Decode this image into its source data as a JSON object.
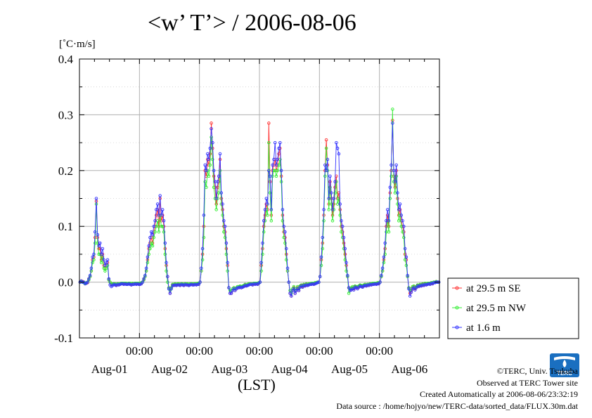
{
  "title": "<w’ T’> / 2006-08-06",
  "credits": {
    "copyright": "©TERC, Univ. Tsukuba",
    "observed": "Observed at TERC Tower site",
    "created": "Created Automatically at 2006-08-06/23:32:19",
    "source": "Data source : /home/hojyo/new/TERC-data/sorted_data/FLUX.30m.dat"
  },
  "logo": {
    "text": "TERC",
    "color": "#1a6fc0"
  },
  "chart_data": {
    "type": "line",
    "title": "<w’ T’> / 2006-08-06",
    "ylabel": "[˚C·m/s]",
    "xlabel": "(LST)",
    "ylim": [
      -0.1,
      0.4
    ],
    "yticks": [
      "0.4",
      "0.3",
      "0.2",
      "0.1",
      "0.0",
      "-0.1"
    ],
    "xlim_days": [
      0,
      6
    ],
    "x_midnight_labels": [
      "00:00",
      "00:00",
      "00:00",
      "00:00",
      "00:00"
    ],
    "x_day_labels": [
      "Aug-01",
      "Aug-02",
      "Aug-03",
      "Aug-04",
      "Aug-05",
      "Aug-06"
    ],
    "grid": true,
    "legend_position": "right",
    "legend": [
      "at 29.5 m SE",
      "at 29.5 m NW",
      "at 1.6 m"
    ],
    "series": [
      {
        "name": "at 29.5 m SE",
        "color": "#ff3333",
        "day_peaks": [
          0.145,
          0.15,
          0.285,
          0.285,
          0.255,
          0.29
        ],
        "values": [
          [
            0.0,
            0.002,
            0.001,
            0.0,
            -0.002,
            -0.002,
            -0.001,
            0.005,
            0.01,
            0.02,
            0.04,
            0.045,
            0.08,
            0.145,
            0.08,
            0.06,
            0.06,
            0.04,
            0.05,
            0.03,
            0.025,
            0.03,
            0.035,
            0.005,
            0.0,
            -0.005,
            -0.004,
            -0.003,
            -0.004,
            -0.005,
            -0.003,
            -0.004,
            -0.003,
            -0.002,
            -0.002,
            -0.003,
            -0.002,
            -0.003,
            -0.003,
            -0.002,
            -0.003,
            -0.004,
            -0.003,
            -0.003,
            -0.002,
            -0.003,
            -0.002,
            -0.003
          ],
          [
            -0.003,
            -0.002,
            0.0,
            0.005,
            0.01,
            0.02,
            0.04,
            0.06,
            0.07,
            0.08,
            0.07,
            0.09,
            0.1,
            0.12,
            0.13,
            0.1,
            0.15,
            0.11,
            0.12,
            0.1,
            0.06,
            0.03,
            0.01,
            -0.01,
            -0.02,
            -0.01,
            -0.005,
            -0.005,
            -0.004,
            -0.005,
            -0.004,
            -0.004,
            -0.005,
            -0.003,
            -0.004,
            -0.005,
            -0.003,
            -0.004,
            -0.004,
            -0.005,
            -0.004,
            -0.003,
            -0.004,
            -0.004,
            -0.003,
            -0.004,
            -0.003,
            -0.003
          ],
          [
            0.0,
            0.02,
            0.05,
            0.1,
            0.2,
            0.19,
            0.22,
            0.21,
            0.23,
            0.285,
            0.24,
            0.19,
            0.17,
            0.14,
            0.17,
            0.18,
            0.22,
            0.15,
            0.13,
            0.1,
            0.09,
            0.06,
            0.03,
            -0.01,
            -0.02,
            -0.02,
            -0.015,
            -0.01,
            -0.015,
            -0.012,
            -0.01,
            -0.01,
            -0.008,
            -0.01,
            -0.008,
            -0.007,
            -0.005,
            -0.006,
            -0.005,
            -0.004,
            -0.003,
            -0.003,
            -0.004,
            -0.002,
            -0.003,
            -0.002,
            -0.003,
            -0.001
          ],
          [
            0.0,
            0.03,
            0.06,
            0.1,
            0.12,
            0.14,
            0.13,
            0.285,
            0.18,
            0.12,
            0.2,
            0.21,
            0.22,
            0.2,
            0.21,
            0.23,
            0.24,
            0.19,
            0.12,
            0.09,
            0.08,
            0.05,
            0.02,
            0.0,
            -0.02,
            -0.025,
            -0.015,
            -0.01,
            -0.02,
            -0.015,
            -0.01,
            -0.015,
            -0.008,
            -0.006,
            -0.008,
            -0.005,
            -0.006,
            -0.004,
            -0.005,
            -0.004,
            -0.003,
            -0.003,
            -0.002,
            -0.003,
            -0.002,
            -0.001,
            0.0,
            0.0
          ],
          [
            0.01,
            0.04,
            0.07,
            0.12,
            0.2,
            0.255,
            0.21,
            0.14,
            0.18,
            0.15,
            0.12,
            0.14,
            0.17,
            0.19,
            0.15,
            0.16,
            0.13,
            0.1,
            0.09,
            0.07,
            0.05,
            0.03,
            0.01,
            -0.01,
            -0.015,
            -0.012,
            -0.01,
            -0.012,
            -0.008,
            -0.009,
            -0.01,
            -0.008,
            -0.006,
            -0.007,
            -0.008,
            -0.006,
            -0.005,
            -0.006,
            -0.004,
            -0.005,
            -0.003,
            -0.004,
            -0.003,
            -0.003,
            -0.002,
            -0.003,
            -0.002,
            -0.002
          ],
          [
            0.0,
            0.01,
            0.02,
            0.04,
            0.06,
            0.1,
            0.12,
            0.1,
            0.16,
            0.2,
            0.29,
            0.19,
            0.17,
            0.2,
            0.15,
            0.12,
            0.13,
            0.11,
            0.1,
            0.09,
            0.05,
            0.04,
            0.01,
            -0.01,
            -0.02,
            -0.015,
            -0.01,
            -0.008,
            -0.012,
            -0.009,
            -0.006,
            -0.007,
            -0.005,
            -0.006,
            -0.004,
            -0.005,
            -0.003,
            -0.004,
            -0.003,
            -0.002,
            -0.003,
            -0.001,
            -0.002,
            0.0,
            0.0,
            0.001,
            0.0,
            0.0
          ]
        ]
      },
      {
        "name": "at 29.5 m NW",
        "color": "#33ee33",
        "day_peaks": [
          0.14,
          0.12,
          0.26,
          0.25,
          0.24,
          0.31
        ],
        "values": [
          [
            0.0,
            0.001,
            0.0,
            -0.001,
            -0.002,
            -0.001,
            0.0,
            0.004,
            0.01,
            0.02,
            0.035,
            0.04,
            0.07,
            0.14,
            0.07,
            0.05,
            0.05,
            0.035,
            0.045,
            0.025,
            0.02,
            0.025,
            0.03,
            0.004,
            0.0,
            -0.004,
            -0.003,
            -0.003,
            -0.003,
            -0.004,
            -0.003,
            -0.003,
            -0.003,
            -0.002,
            -0.002,
            -0.002,
            -0.002,
            -0.002,
            -0.003,
            -0.002,
            -0.002,
            -0.003,
            -0.002,
            -0.003,
            -0.002,
            -0.002,
            -0.002,
            -0.002
          ],
          [
            -0.002,
            -0.001,
            0.0,
            0.004,
            0.01,
            0.02,
            0.035,
            0.05,
            0.06,
            0.07,
            0.065,
            0.08,
            0.09,
            0.1,
            0.11,
            0.09,
            0.12,
            0.1,
            0.1,
            0.09,
            0.05,
            0.02,
            0.0,
            -0.01,
            -0.015,
            -0.01,
            -0.004,
            -0.004,
            -0.003,
            -0.004,
            -0.003,
            -0.003,
            -0.004,
            -0.003,
            -0.003,
            -0.004,
            -0.003,
            -0.003,
            -0.003,
            -0.004,
            -0.003,
            -0.003,
            -0.003,
            -0.003,
            -0.003,
            -0.003,
            -0.002,
            -0.002
          ],
          [
            0.0,
            0.02,
            0.04,
            0.08,
            0.18,
            0.17,
            0.2,
            0.19,
            0.21,
            0.26,
            0.22,
            0.17,
            0.15,
            0.13,
            0.15,
            0.16,
            0.2,
            0.14,
            0.12,
            0.09,
            0.08,
            0.05,
            0.02,
            -0.01,
            -0.015,
            -0.015,
            -0.012,
            -0.01,
            -0.012,
            -0.01,
            -0.008,
            -0.008,
            -0.007,
            -0.008,
            -0.007,
            -0.006,
            -0.004,
            -0.005,
            -0.004,
            -0.003,
            -0.003,
            -0.003,
            -0.003,
            -0.002,
            -0.002,
            -0.002,
            -0.002,
            -0.001
          ],
          [
            0.0,
            0.02,
            0.05,
            0.09,
            0.11,
            0.13,
            0.12,
            0.25,
            0.16,
            0.11,
            0.19,
            0.2,
            0.2,
            0.19,
            0.2,
            0.21,
            0.22,
            0.18,
            0.11,
            0.08,
            0.07,
            0.04,
            0.02,
            0.0,
            -0.015,
            -0.02,
            -0.012,
            -0.008,
            -0.015,
            -0.012,
            -0.008,
            -0.012,
            -0.007,
            -0.005,
            -0.007,
            -0.004,
            -0.005,
            -0.003,
            -0.004,
            -0.003,
            -0.003,
            -0.002,
            -0.002,
            -0.002,
            -0.001,
            -0.001,
            0.0,
            0.0
          ],
          [
            0.01,
            0.03,
            0.06,
            0.11,
            0.19,
            0.24,
            0.2,
            0.13,
            0.17,
            0.14,
            0.11,
            0.13,
            0.16,
            0.18,
            0.14,
            0.15,
            0.12,
            0.09,
            0.08,
            0.06,
            0.04,
            0.02,
            0.01,
            -0.02,
            -0.012,
            -0.01,
            -0.008,
            -0.01,
            -0.007,
            -0.008,
            -0.008,
            -0.007,
            -0.005,
            -0.006,
            -0.007,
            -0.005,
            -0.004,
            -0.005,
            -0.004,
            -0.004,
            -0.003,
            -0.003,
            -0.002,
            -0.002,
            -0.002,
            -0.002,
            -0.001,
            -0.001
          ],
          [
            0.0,
            0.01,
            0.02,
            0.035,
            0.05,
            0.09,
            0.11,
            0.09,
            0.15,
            0.19,
            0.31,
            0.18,
            0.16,
            0.19,
            0.14,
            0.11,
            0.12,
            0.1,
            0.09,
            0.08,
            0.04,
            0.03,
            0.01,
            -0.01,
            -0.015,
            -0.012,
            -0.008,
            -0.007,
            -0.01,
            -0.008,
            -0.005,
            -0.006,
            -0.004,
            -0.005,
            -0.003,
            -0.004,
            -0.002,
            -0.003,
            -0.002,
            -0.002,
            -0.002,
            -0.001,
            -0.001,
            0.0,
            0.0,
            0.001,
            0.0,
            0.0
          ]
        ]
      },
      {
        "name": "at 1.6 m",
        "color": "#3333ff",
        "day_peaks": [
          0.15,
          0.155,
          0.275,
          0.25,
          0.25,
          0.285
        ],
        "values": [
          [
            0.0,
            0.002,
            0.0,
            0.0,
            -0.003,
            -0.002,
            0.0,
            0.006,
            0.012,
            0.025,
            0.045,
            0.05,
            0.09,
            0.15,
            0.085,
            0.065,
            0.07,
            0.05,
            0.06,
            0.04,
            0.03,
            0.035,
            0.04,
            0.006,
            -0.005,
            -0.008,
            -0.006,
            -0.004,
            -0.005,
            -0.006,
            -0.004,
            -0.005,
            -0.004,
            -0.003,
            -0.003,
            -0.004,
            -0.003,
            -0.004,
            -0.004,
            -0.003,
            -0.004,
            -0.005,
            -0.004,
            -0.004,
            -0.003,
            -0.004,
            -0.003,
            -0.004
          ],
          [
            -0.004,
            -0.003,
            0.0,
            0.006,
            0.012,
            0.025,
            0.045,
            0.065,
            0.08,
            0.09,
            0.085,
            0.1,
            0.11,
            0.13,
            0.14,
            0.12,
            0.155,
            0.12,
            0.13,
            0.11,
            0.07,
            0.035,
            0.01,
            -0.012,
            -0.02,
            -0.012,
            -0.006,
            -0.006,
            -0.005,
            -0.006,
            -0.005,
            -0.005,
            -0.006,
            -0.004,
            -0.005,
            -0.006,
            -0.004,
            -0.005,
            -0.005,
            -0.006,
            -0.005,
            -0.004,
            -0.005,
            -0.005,
            -0.004,
            -0.005,
            -0.004,
            -0.004
          ],
          [
            0.0,
            0.025,
            0.06,
            0.12,
            0.21,
            0.2,
            0.23,
            0.22,
            0.24,
            0.275,
            0.25,
            0.2,
            0.18,
            0.15,
            0.18,
            0.19,
            0.23,
            0.16,
            0.14,
            0.11,
            0.1,
            0.07,
            0.035,
            -0.01,
            -0.02,
            -0.02,
            -0.015,
            -0.012,
            -0.015,
            -0.012,
            -0.01,
            -0.01,
            -0.009,
            -0.01,
            -0.009,
            -0.008,
            -0.006,
            -0.007,
            -0.006,
            -0.005,
            -0.004,
            -0.004,
            -0.005,
            -0.003,
            -0.004,
            -0.003,
            -0.004,
            -0.002
          ],
          [
            0.0,
            0.035,
            0.07,
            0.11,
            0.13,
            0.15,
            0.14,
            0.2,
            0.19,
            0.13,
            0.21,
            0.22,
            0.25,
            0.21,
            0.22,
            0.24,
            0.25,
            0.2,
            0.13,
            0.1,
            0.09,
            0.06,
            0.025,
            0.0,
            -0.02,
            -0.025,
            -0.015,
            -0.012,
            -0.02,
            -0.015,
            -0.012,
            -0.015,
            -0.009,
            -0.007,
            -0.009,
            -0.006,
            -0.007,
            -0.005,
            -0.006,
            -0.005,
            -0.004,
            -0.004,
            -0.003,
            -0.004,
            -0.003,
            -0.002,
            -0.001,
            0.0
          ],
          [
            0.01,
            0.045,
            0.08,
            0.13,
            0.21,
            0.2,
            0.22,
            0.15,
            0.19,
            0.16,
            0.13,
            0.15,
            0.18,
            0.25,
            0.24,
            0.23,
            0.14,
            0.11,
            0.1,
            0.08,
            0.06,
            0.035,
            0.012,
            -0.01,
            -0.015,
            -0.014,
            -0.012,
            -0.014,
            -0.009,
            -0.01,
            -0.012,
            -0.009,
            -0.007,
            -0.008,
            -0.009,
            -0.007,
            -0.006,
            -0.007,
            -0.005,
            -0.006,
            -0.004,
            -0.005,
            -0.004,
            -0.004,
            -0.003,
            -0.004,
            -0.003,
            -0.003
          ],
          [
            0.0,
            0.012,
            0.025,
            0.045,
            0.07,
            0.11,
            0.13,
            0.11,
            0.17,
            0.21,
            0.285,
            0.2,
            0.18,
            0.21,
            0.16,
            0.13,
            0.14,
            0.12,
            0.11,
            0.1,
            0.06,
            0.045,
            0.012,
            -0.012,
            -0.025,
            -0.018,
            -0.012,
            -0.01,
            -0.014,
            -0.01,
            -0.007,
            -0.008,
            -0.006,
            -0.007,
            -0.005,
            -0.006,
            -0.004,
            -0.005,
            -0.004,
            -0.003,
            -0.004,
            -0.002,
            -0.003,
            -0.001,
            -0.001,
            0.0,
            0.0,
            0.0
          ]
        ]
      }
    ]
  }
}
